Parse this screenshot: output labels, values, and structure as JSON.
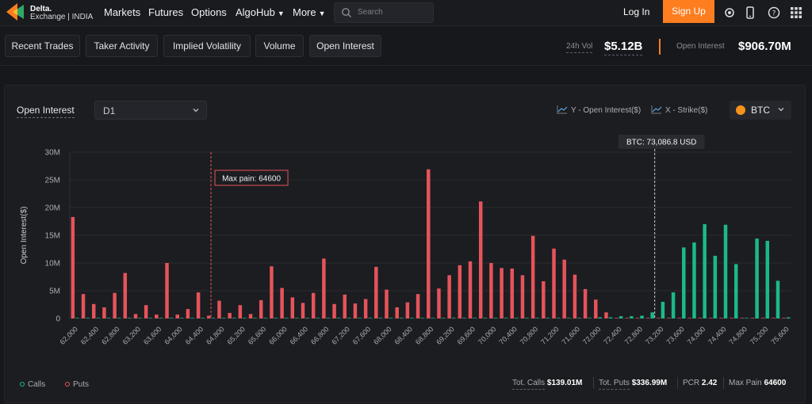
{
  "brand": {
    "name_line1": "Delta.",
    "name_line2": "Exchange",
    "region": "INDIA"
  },
  "nav": {
    "items": [
      "Markets",
      "Futures",
      "Options",
      "AlgoHub",
      "More"
    ],
    "search_placeholder": "Search",
    "login": "Log In",
    "signup": "Sign Up"
  },
  "tabs": [
    "Recent Trades",
    "Taker Activity",
    "Implied Volatility",
    "Volume",
    "Open Interest"
  ],
  "stats": {
    "vol_label": "24h Vol",
    "vol_value": "$5.12B",
    "oi_label": "Open Interest",
    "oi_value": "$906.70M"
  },
  "panel": {
    "title": "Open Interest",
    "period": "D1",
    "y_axis_legend": "Y - Open Interest($)",
    "x_axis_legend": "X - Strike($)",
    "asset": "BTC"
  },
  "colors": {
    "calls": "#1bb98a",
    "puts": "#e5545b",
    "accent": "#fd7d1f"
  },
  "chart_data": {
    "type": "bar",
    "ylabel": "Open Interest($)",
    "ylim": [
      0,
      30000000
    ],
    "y_ticks": [
      "0",
      "5M",
      "10M",
      "15M",
      "20M",
      "25M",
      "30M"
    ],
    "max_pain_label": "Max pain: 64600",
    "max_pain_strike": 64600,
    "spot_label": "BTC: 73,086.8 USD",
    "spot_price": 73086.8,
    "categories": [
      "62,000",
      "62,200",
      "62,400",
      "62,600",
      "62,800",
      "63,000",
      "63,200",
      "63,400",
      "63,600",
      "63,800",
      "64,000",
      "64,200",
      "64,400",
      "64,600",
      "64,800",
      "65,000",
      "65,200",
      "65,400",
      "65,600",
      "65,800",
      "66,000",
      "66,200",
      "66,400",
      "66,600",
      "66,800",
      "67,000",
      "67,200",
      "67,400",
      "67,600",
      "67,800",
      "68,000",
      "68,200",
      "68,400",
      "68,600",
      "68,800",
      "69,000",
      "69,200",
      "69,400",
      "69,600",
      "69,800",
      "70,000",
      "70,200",
      "70,400",
      "70,600",
      "70,800",
      "71,000",
      "71,200",
      "71,400",
      "71,600",
      "71,800",
      "72,000",
      "72,200",
      "72,400",
      "72,600",
      "72,800",
      "73,000",
      "73,200",
      "73,400",
      "73,600",
      "73,800",
      "74,000",
      "74,200",
      "74,400",
      "74,600",
      "74,800",
      "75,000",
      "75,200",
      "75,400",
      "75,600"
    ],
    "series": [
      {
        "name": "Calls",
        "values": [
          0.1,
          0.1,
          0.1,
          0.1,
          0.1,
          0.1,
          0.1,
          0.1,
          0.1,
          0.1,
          0.1,
          0.1,
          0.1,
          0.1,
          0.1,
          0.1,
          0.1,
          0.1,
          0.1,
          0.1,
          0.1,
          0.1,
          0.1,
          0.1,
          0.1,
          0.1,
          0.1,
          0.1,
          0.1,
          0.1,
          0.1,
          0.1,
          0.1,
          0.1,
          0.1,
          0.1,
          0.1,
          0.1,
          0.1,
          0.1,
          0.1,
          0.1,
          0.1,
          0.1,
          0.1,
          0.1,
          0.1,
          0.1,
          0.1,
          0.1,
          0.2,
          0.2,
          0.4,
          0.4,
          0.5,
          1.1,
          3.0,
          4.7,
          12.8,
          13.7,
          17.0,
          11.3,
          16.9,
          9.8,
          0.1,
          14.4,
          14.0,
          6.8,
          0.2
        ]
      },
      {
        "name": "Puts",
        "values": [
          18.3,
          4.4,
          2.6,
          2.0,
          4.6,
          8.2,
          0.8,
          2.4,
          0.7,
          10.0,
          0.7,
          1.7,
          4.7,
          0.5,
          3.2,
          1.0,
          2.4,
          0.8,
          3.3,
          9.4,
          5.5,
          3.8,
          2.8,
          4.6,
          10.8,
          2.6,
          4.3,
          2.7,
          3.5,
          9.3,
          5.2,
          2.0,
          2.9,
          4.4,
          26.9,
          5.4,
          7.8,
          9.6,
          10.3,
          21.1,
          10.0,
          9.1,
          9.0,
          7.8,
          14.9,
          6.7,
          12.6,
          10.6,
          7.9,
          5.3,
          3.4,
          1.1,
          0.1,
          0.1,
          0.1,
          0.1,
          0.1,
          0.1,
          0.1,
          0.1,
          0.1,
          0.1,
          0.1,
          0.1,
          0.1,
          0.1,
          0.1,
          0.1,
          0.1
        ]
      }
    ]
  },
  "legend": {
    "calls": "Calls",
    "puts": "Puts"
  },
  "summary": {
    "calls_label": "Tot. Calls",
    "calls_value": "$139.01M",
    "puts_label": "Tot. Puts",
    "puts_value": "$336.99M",
    "pcr_label": "PCR",
    "pcr_value": "2.42",
    "maxpain_label": "Max Pain",
    "maxpain_value": "64600"
  }
}
